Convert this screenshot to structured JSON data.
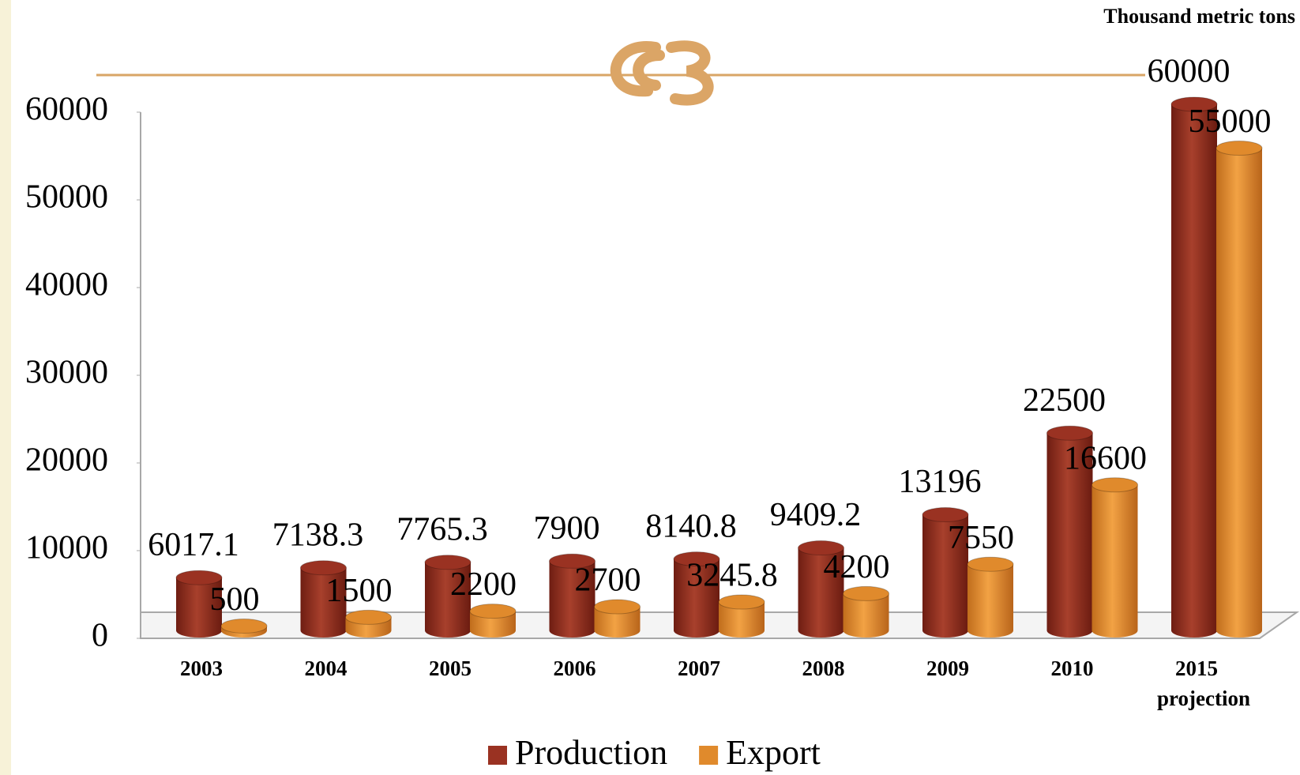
{
  "chart_data": {
    "type": "bar3d",
    "unit_label": "Thousand metric tons",
    "categories": [
      "2003",
      "2004",
      "2005",
      "2006",
      "2007",
      "2008",
      "2009",
      "2010",
      "2015 projection"
    ],
    "series": [
      {
        "name": "Production",
        "color": "#9a3222",
        "values": [
          6017.1,
          7138.3,
          7765.3,
          7900,
          8140.8,
          9409.2,
          13196,
          22500,
          60000
        ]
      },
      {
        "name": "Export",
        "color": "#e08a2c",
        "values": [
          500,
          1500,
          2200,
          2700,
          3245.8,
          4200,
          7550,
          16600,
          55000
        ]
      }
    ],
    "ylim": [
      0,
      60000
    ],
    "yticks": [
      0,
      10000,
      20000,
      30000,
      40000,
      50000,
      60000
    ]
  }
}
